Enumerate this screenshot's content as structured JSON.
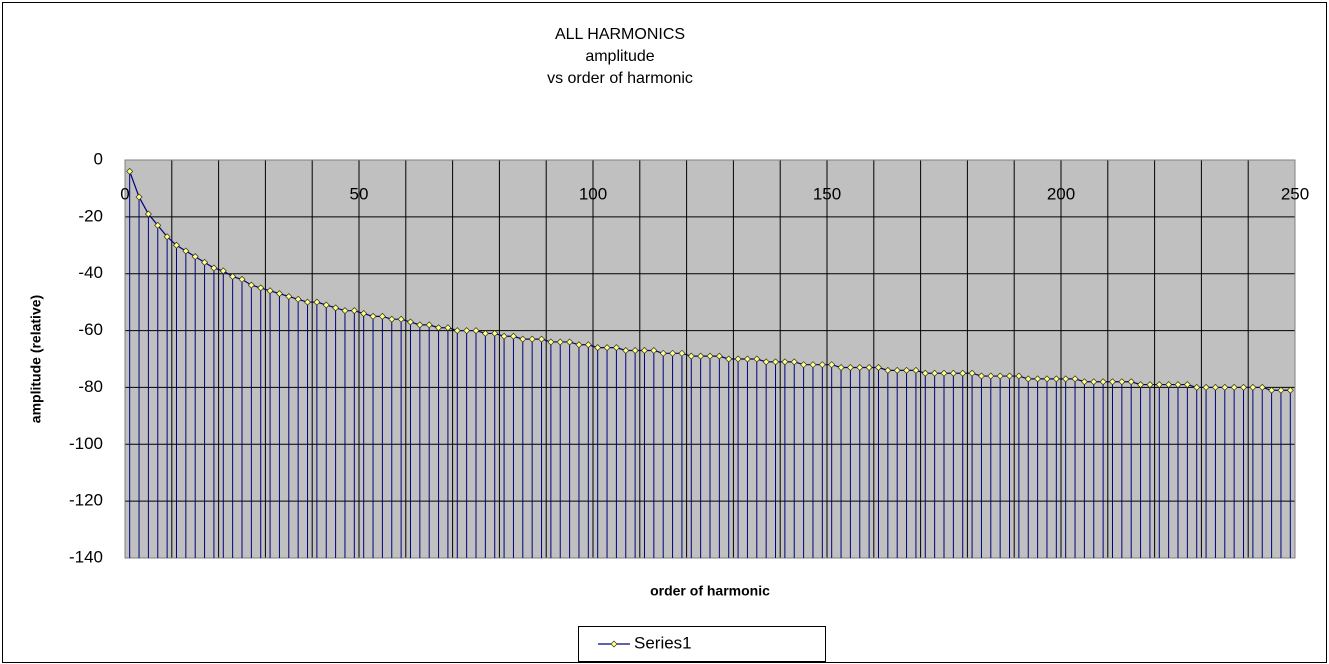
{
  "chart_data": {
    "type": "line",
    "title": [
      "ALL HARMONICS",
      "amplitude",
      "vs order of harmonic"
    ],
    "x_label": "order of harmonic",
    "y_label": "amplitude (relative)",
    "legend": "bottom",
    "drop_lines": true,
    "grid": true,
    "xlim": [
      0,
      250
    ],
    "xticks": [
      0,
      50,
      100,
      150,
      200,
      250
    ],
    "x_minor_ticks": [
      10,
      20,
      30,
      40,
      60,
      70,
      80,
      90,
      110,
      120,
      130,
      140,
      160,
      170,
      180,
      190,
      210,
      220,
      230,
      240
    ],
    "ylim": [
      -140,
      0
    ],
    "yticks": [
      0,
      -20,
      -40,
      -60,
      -80,
      -100,
      -120,
      -140
    ],
    "plot_background": "#c0c0c0",
    "x": [
      1,
      3,
      5,
      7,
      9,
      11,
      13,
      15,
      17,
      19,
      21,
      23,
      25,
      27,
      29,
      31,
      33,
      35,
      37,
      39,
      41,
      43,
      45,
      47,
      49,
      51,
      53,
      55,
      57,
      59,
      61,
      63,
      65,
      67,
      69,
      71,
      73,
      75,
      77,
      79,
      81,
      83,
      85,
      87,
      89,
      91,
      93,
      95,
      97,
      99,
      101,
      103,
      105,
      107,
      109,
      111,
      113,
      115,
      117,
      119,
      121,
      123,
      125,
      127,
      129,
      131,
      133,
      135,
      137,
      139,
      141,
      143,
      145,
      147,
      149,
      151,
      153,
      155,
      157,
      159,
      161,
      163,
      165,
      167,
      169,
      171,
      173,
      175,
      177,
      179,
      181,
      183,
      185,
      187,
      189,
      191,
      193,
      195,
      197,
      199,
      201,
      203,
      205,
      207,
      209,
      211,
      213,
      215,
      217,
      219,
      221,
      223,
      225,
      227,
      229,
      231,
      233,
      235,
      237,
      239,
      241,
      243,
      245,
      247,
      249
    ],
    "series": [
      {
        "name": "Series1",
        "color": "#000080",
        "marker_color": "#ffff99",
        "values": [
          -4,
          -13,
          -19,
          -23,
          -27,
          -30,
          -32,
          -34,
          -36,
          -38,
          -39,
          -41,
          -42,
          -44,
          -45,
          -46,
          -47,
          -48,
          -49,
          -50,
          -50,
          -51,
          -52,
          -53,
          -53,
          -54,
          -55,
          -55,
          -56,
          -56,
          -57,
          -58,
          -58,
          -59,
          -59,
          -60,
          -60,
          -60,
          -61,
          -61,
          -62,
          -62,
          -63,
          -63,
          -63,
          -64,
          -64,
          -64,
          -65,
          -65,
          -66,
          -66,
          -66,
          -67,
          -67,
          -67,
          -67,
          -68,
          -68,
          -68,
          -69,
          -69,
          -69,
          -69,
          -70,
          -70,
          -70,
          -70,
          -71,
          -71,
          -71,
          -71,
          -72,
          -72,
          -72,
          -72,
          -73,
          -73,
          -73,
          -73,
          -73,
          -74,
          -74,
          -74,
          -74,
          -75,
          -75,
          -75,
          -75,
          -75,
          -75,
          -76,
          -76,
          -76,
          -76,
          -76,
          -77,
          -77,
          -77,
          -77,
          -77,
          -77,
          -78,
          -78,
          -78,
          -78,
          -78,
          -78,
          -79,
          -79,
          -79,
          -79,
          -79,
          -79,
          -80,
          -80,
          -80,
          -80,
          -80,
          -80,
          -80,
          -80,
          -81,
          -81,
          -81
        ]
      }
    ]
  }
}
